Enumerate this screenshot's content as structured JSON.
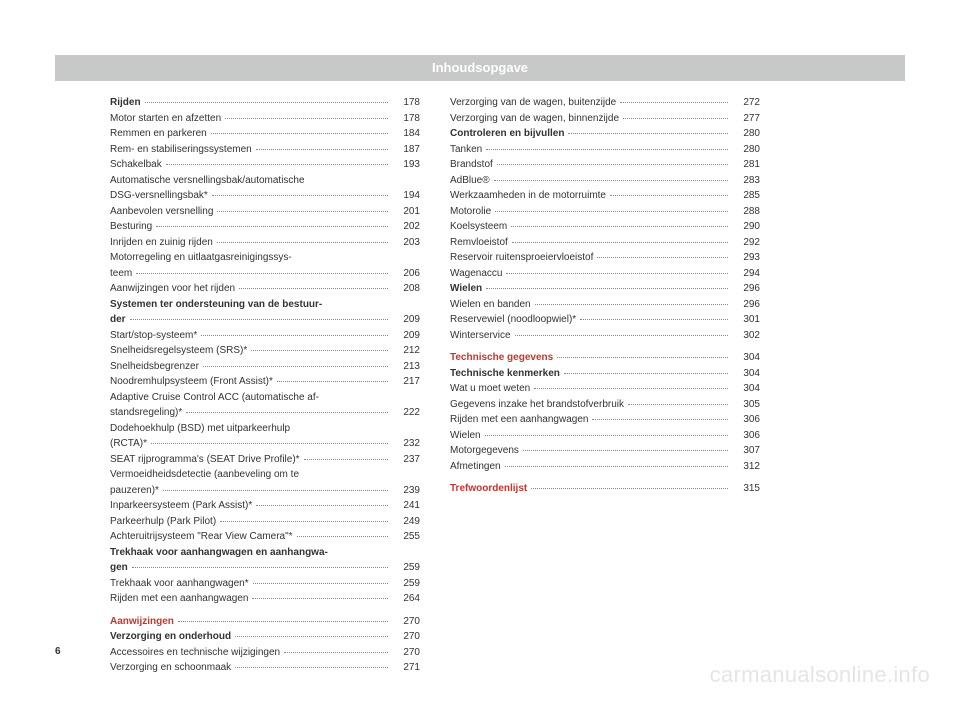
{
  "title": "Inhoudsopgave",
  "page_number": "6",
  "watermark": "carmanualsonline.info",
  "col1": [
    {
      "label": "Rijden",
      "page": "178",
      "bold": true
    },
    {
      "label": "Motor starten en afzetten",
      "page": "178"
    },
    {
      "label": "Remmen en parkeren",
      "page": "184"
    },
    {
      "label": "Rem- en stabiliseringssystemen",
      "page": "187"
    },
    {
      "label": "Schakelbak",
      "page": "193"
    },
    {
      "label": "Automatische versnellingsbak/automatische",
      "cont": true
    },
    {
      "label": "DSG-versnellingsbak*",
      "page": "194"
    },
    {
      "label": "Aanbevolen versnelling",
      "page": "201"
    },
    {
      "label": "Besturing",
      "page": "202"
    },
    {
      "label": "Inrijden en zuinig rijden",
      "page": "203"
    },
    {
      "label": "Motorregeling en uitlaatgasreinigingssys-",
      "cont": true
    },
    {
      "label": "teem",
      "page": "206"
    },
    {
      "label": "Aanwijzingen voor het rijden",
      "page": "208"
    },
    {
      "label": "Systemen ter ondersteuning van de bestuur-",
      "cont": true,
      "bold": true
    },
    {
      "label": "der",
      "page": "209",
      "bold": true
    },
    {
      "label": "Start/stop-systeem*",
      "page": "209"
    },
    {
      "label": "Snelheidsregelsysteem (SRS)*",
      "page": "212"
    },
    {
      "label": "Snelheidsbegrenzer",
      "page": "213"
    },
    {
      "label": "Noodremhulpsysteem (Front Assist)*",
      "page": "217"
    },
    {
      "label": "Adaptive Cruise Control ACC (automatische af-",
      "cont": true
    },
    {
      "label": "standsregeling)*",
      "page": "222"
    },
    {
      "label": "Dodehoekhulp (BSD) met uitparkeerhulp",
      "cont": true
    },
    {
      "label": "(RCTA)*",
      "page": "232"
    },
    {
      "label": "SEAT rijprogramma's (SEAT Drive Profile)*",
      "page": "237"
    },
    {
      "label": "Vermoeidheidsdetectie (aanbeveling om te",
      "cont": true
    },
    {
      "label": "pauzeren)*",
      "page": "239"
    },
    {
      "label": "Inparkeersysteem (Park Assist)*",
      "page": "241"
    },
    {
      "label": "Parkeerhulp (Park Pilot)",
      "page": "249"
    },
    {
      "label": "Achteruitrijsysteem \"Rear View Camera\"*",
      "page": "255"
    },
    {
      "label": "Trekhaak voor aanhangwagen en aanhangwa-",
      "cont": true,
      "bold": true
    },
    {
      "label": "gen",
      "page": "259",
      "bold": true
    },
    {
      "label": "Trekhaak voor aanhangwagen*",
      "page": "259"
    },
    {
      "label": "Rijden met een aanhangwagen",
      "page": "264"
    },
    {
      "gap": true
    },
    {
      "label": "Aanwijzingen",
      "page": "270",
      "red": true
    },
    {
      "label": "Verzorging en onderhoud",
      "page": "270",
      "bold": true
    },
    {
      "label": "Accessoires en technische wijzigingen",
      "page": "270"
    },
    {
      "label": "Verzorging en schoonmaak",
      "page": "271"
    }
  ],
  "col2": [
    {
      "label": "Verzorging van de wagen, buitenzijde",
      "page": "272"
    },
    {
      "label": "Verzorging van de wagen, binnenzijde",
      "page": "277"
    },
    {
      "label": "Controleren en bijvullen",
      "page": "280",
      "bold": true
    },
    {
      "label": "Tanken",
      "page": "280"
    },
    {
      "label": "Brandstof",
      "page": "281"
    },
    {
      "label": "AdBlue®",
      "page": "283"
    },
    {
      "label": "Werkzaamheden in de motorruimte",
      "page": "285"
    },
    {
      "label": "Motorolie",
      "page": "288"
    },
    {
      "label": "Koelsysteem",
      "page": "290"
    },
    {
      "label": "Remvloeistof",
      "page": "292"
    },
    {
      "label": "Reservoir ruitensproeiervloeistof",
      "page": "293"
    },
    {
      "label": "Wagenaccu",
      "page": "294"
    },
    {
      "label": "Wielen",
      "page": "296",
      "bold": true
    },
    {
      "label": "Wielen en banden",
      "page": "296"
    },
    {
      "label": "Reservewiel (noodloopwiel)*",
      "page": "301"
    },
    {
      "label": "Winterservice",
      "page": "302"
    },
    {
      "gap": true
    },
    {
      "label": "Technische gegevens",
      "page": "304",
      "red": true
    },
    {
      "label": "Technische kenmerken",
      "page": "304",
      "bold": true
    },
    {
      "label": "Wat u moet weten",
      "page": "304"
    },
    {
      "label": "Gegevens inzake het brandstofverbruik",
      "page": "305"
    },
    {
      "label": "Rijden met een aanhangwagen",
      "page": "306"
    },
    {
      "label": "Wielen",
      "page": "306"
    },
    {
      "label": "Motorgegevens",
      "page": "307"
    },
    {
      "label": "Afmetingen",
      "page": "312"
    },
    {
      "gap": true
    },
    {
      "label": "Trefwoordenlijst",
      "page": "315",
      "red": true
    }
  ]
}
